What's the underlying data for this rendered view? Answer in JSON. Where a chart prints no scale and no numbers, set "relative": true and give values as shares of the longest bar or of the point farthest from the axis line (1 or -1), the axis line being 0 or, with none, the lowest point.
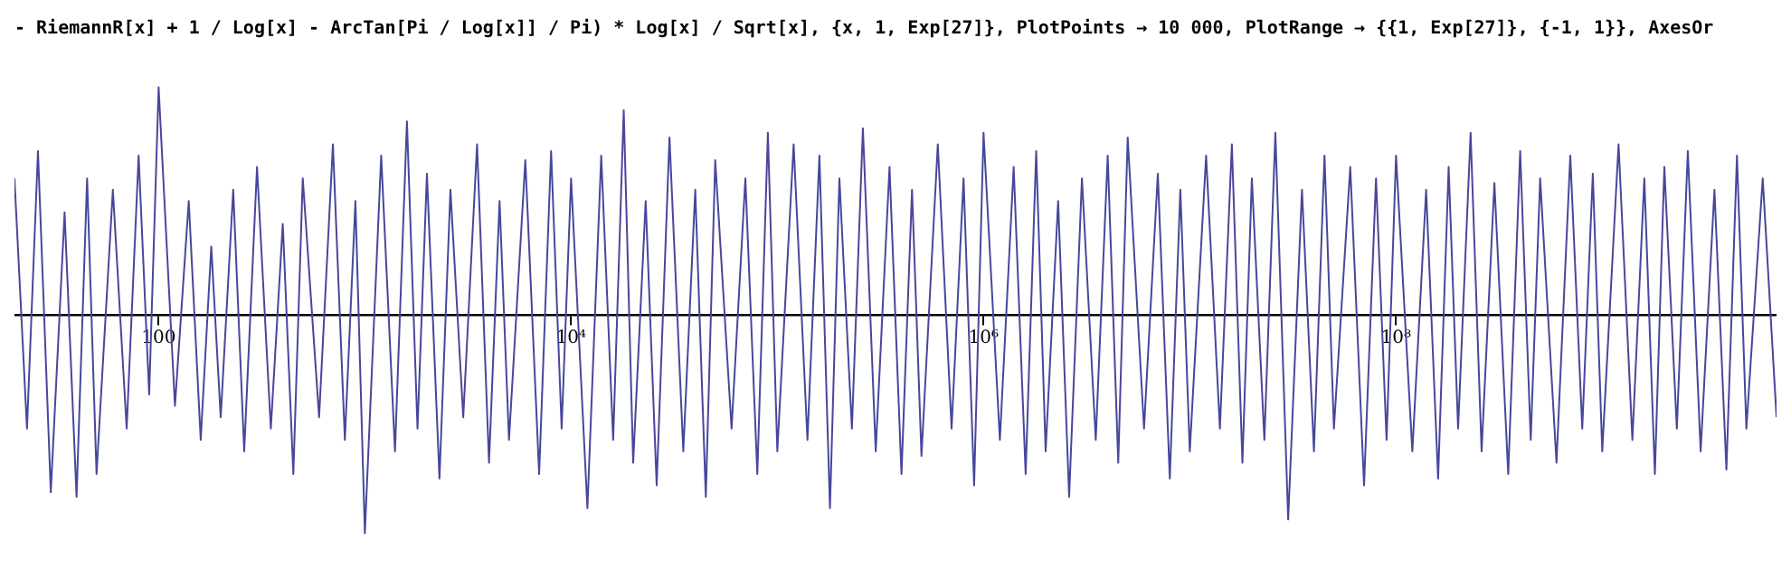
{
  "chart_data": {
    "type": "line",
    "title": "- RiemannR[x] + 1 / Log[x] - ArcTan[Pi / Log[x]] / Pi) * Log[x] / Sqrt[x], {x, 1, Exp[27]}, PlotPoints → 10 000, PlotRange → {{1, Exp[27]}, {-1, 1}}, AxesOr",
    "relative": true,
    "log": "x",
    "xlim": [
      20,
      7000000000.0
    ],
    "xticks": [
      100,
      {
        "value": 10000,
        "label": "10⁴"
      },
      {
        "value": 1000000,
        "label": "10⁶"
      },
      {
        "value": 100000000,
        "label": "10⁸"
      }
    ],
    "grid": false,
    "legend": false,
    "series": [
      {
        "color": "#47479c",
        "x": [
          20,
          23,
          26,
          30,
          35,
          40,
          45,
          50,
          60,
          70,
          80,
          90,
          100,
          120,
          140,
          160,
          180,
          200,
          230,
          260,
          300,
          350,
          400,
          450,
          500,
          600,
          700,
          800,
          900,
          1000,
          1200,
          1400,
          1600,
          1800,
          2000,
          2300,
          2600,
          3000,
          3500,
          4000,
          4500,
          5000,
          6000,
          7000,
          8000,
          9000,
          10000.0,
          12000.0,
          14000.0,
          16000.0,
          18000.0,
          20000.0,
          23000.0,
          26000.0,
          30000.0,
          35000.0,
          40000.0,
          45000.0,
          50000.0,
          60000.0,
          70000.0,
          80000.0,
          90000.0,
          100000.0,
          120000.0,
          140000.0,
          160000.0,
          180000.0,
          200000.0,
          230000.0,
          260000.0,
          300000.0,
          350000.0,
          400000.0,
          450000.0,
          500000.0,
          600000.0,
          700000.0,
          800000.0,
          900000.0,
          1000000.0,
          1200000.0,
          1400000.0,
          1600000.0,
          1800000.0,
          2000000.0,
          2300000.0,
          2600000.0,
          3000000.0,
          3500000.0,
          4000000.0,
          4500000.0,
          5000000.0,
          6000000.0,
          7000000.0,
          8000000.0,
          9000000.0,
          10000000.0,
          12000000.0,
          14000000.0,
          16000000.0,
          18000000.0,
          20000000.0,
          23000000.0,
          26000000.0,
          30000000.0,
          35000000.0,
          40000000.0,
          45000000.0,
          50000000.0,
          60000000.0,
          70000000.0,
          80000000.0,
          90000000.0,
          100000000.0,
          120000000.0,
          140000000.0,
          160000000.0,
          180000000.0,
          200000000.0,
          230000000.0,
          260000000.0,
          300000000.0,
          350000000.0,
          400000000.0,
          450000000.0,
          500000000.0,
          600000000.0,
          700000000.0,
          800000000.0,
          900000000.0,
          1000000000.0,
          1200000000.0,
          1400000000.0,
          1600000000.0,
          1800000000.0,
          2000000000.0,
          2300000000.0,
          2600000000.0,
          3000000000.0,
          3500000000.0,
          4000000000.0,
          4500000000.0,
          5000000000.0,
          6000000000.0,
          7000000000.0
        ],
        "values": [
          0.6,
          -0.5,
          0.72,
          -0.78,
          0.45,
          -0.8,
          0.6,
          -0.7,
          0.55,
          -0.5,
          0.7,
          -0.35,
          1.0,
          -0.4,
          0.5,
          -0.55,
          0.3,
          -0.45,
          0.55,
          -0.6,
          0.65,
          -0.5,
          0.4,
          -0.7,
          0.6,
          -0.45,
          0.75,
          -0.55,
          0.5,
          -0.96,
          0.7,
          -0.6,
          0.85,
          -0.5,
          0.62,
          -0.72,
          0.55,
          -0.45,
          0.75,
          -0.65,
          0.5,
          -0.55,
          0.68,
          -0.7,
          0.72,
          -0.5,
          0.6,
          -0.85,
          0.7,
          -0.55,
          0.9,
          -0.65,
          0.5,
          -0.75,
          0.78,
          -0.6,
          0.55,
          -0.8,
          0.68,
          -0.5,
          0.6,
          -0.7,
          0.8,
          -0.6,
          0.75,
          -0.55,
          0.7,
          -0.85,
          0.6,
          -0.5,
          0.82,
          -0.6,
          0.65,
          -0.7,
          0.55,
          -0.62,
          0.75,
          -0.5,
          0.6,
          -0.75,
          0.8,
          -0.55,
          0.65,
          -0.7,
          0.72,
          -0.6,
          0.5,
          -0.8,
          0.6,
          -0.55,
          0.7,
          -0.65,
          0.78,
          -0.5,
          0.62,
          -0.72,
          0.55,
          -0.6,
          0.7,
          -0.5,
          0.75,
          -0.65,
          0.6,
          -0.55,
          0.8,
          -0.9,
          0.55,
          -0.6,
          0.7,
          -0.5,
          0.65,
          -0.75,
          0.6,
          -0.55,
          0.7,
          -0.6,
          0.55,
          -0.72,
          0.65,
          -0.5,
          0.8,
          -0.6,
          0.58,
          -0.7,
          0.72,
          -0.55,
          0.6,
          -0.65,
          0.7,
          -0.5,
          0.62,
          -0.6,
          0.75,
          -0.55,
          0.6,
          -0.7,
          0.65,
          -0.5,
          0.72,
          -0.6,
          0.55,
          -0.68,
          0.7,
          -0.5,
          0.6,
          -0.45
        ]
      }
    ]
  }
}
